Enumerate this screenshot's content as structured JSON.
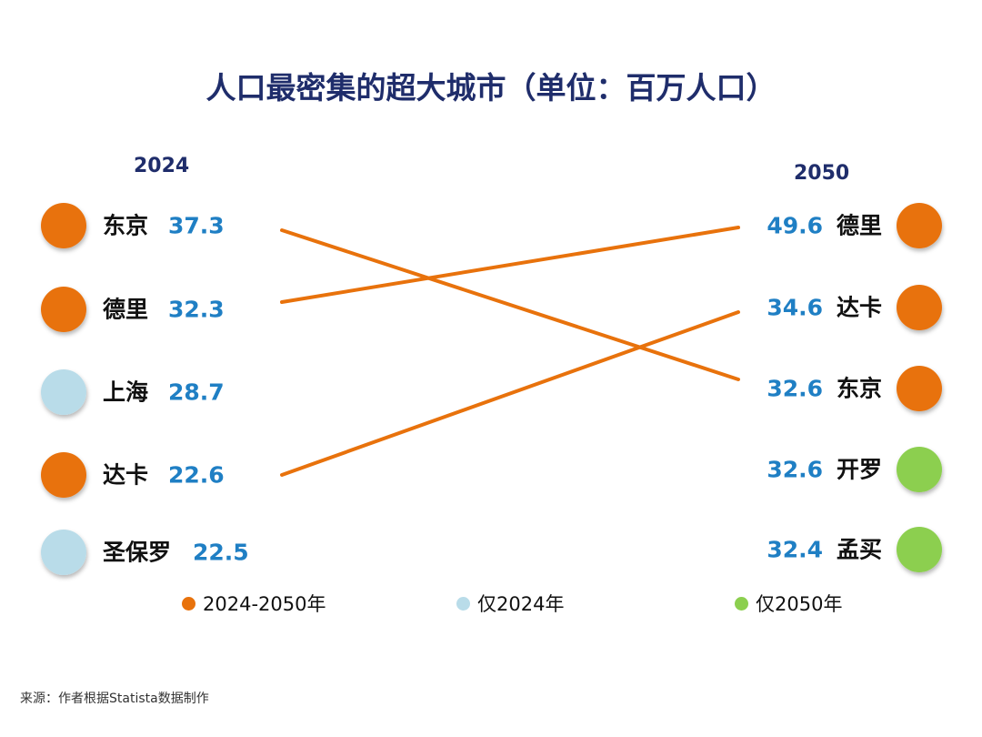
{
  "title": "人口最密集的超大城市（单位：百万人口）",
  "source": "来源：作者根据Statista数据制作",
  "colors": {
    "both": "#e8720c",
    "only2024": "#b9dce9",
    "only2050": "#8ccf4f",
    "value": "#1f7fc4",
    "title": "#1f2d6b"
  },
  "chart_data": {
    "type": "slope",
    "left_label": "2024",
    "right_label": "2050",
    "left": [
      {
        "city": "东京",
        "value": "37.3",
        "group": "both"
      },
      {
        "city": "德里",
        "value": "32.3",
        "group": "both"
      },
      {
        "city": "上海",
        "value": "28.7",
        "group": "only2024"
      },
      {
        "city": "达卡",
        "value": "22.6",
        "group": "both"
      },
      {
        "city": "圣保罗",
        "value": "22.5",
        "group": "only2024"
      }
    ],
    "right": [
      {
        "city": "德里",
        "value": "49.6",
        "group": "both"
      },
      {
        "city": "达卡",
        "value": "34.6",
        "group": "both"
      },
      {
        "city": "东京",
        "value": "32.6",
        "group": "both"
      },
      {
        "city": "开罗",
        "value": "32.6",
        "group": "only2050"
      },
      {
        "city": "孟买",
        "value": "32.4",
        "group": "only2050"
      }
    ],
    "links": [
      {
        "city": "东京",
        "from": 0,
        "to": 2
      },
      {
        "city": "德里",
        "from": 1,
        "to": 0
      },
      {
        "city": "达卡",
        "from": 3,
        "to": 1
      }
    ],
    "legend": [
      {
        "label": "2024-2050年",
        "group": "both"
      },
      {
        "label": "仅2024年",
        "group": "only2024"
      },
      {
        "label": "仅2050年",
        "group": "only2050"
      }
    ]
  }
}
